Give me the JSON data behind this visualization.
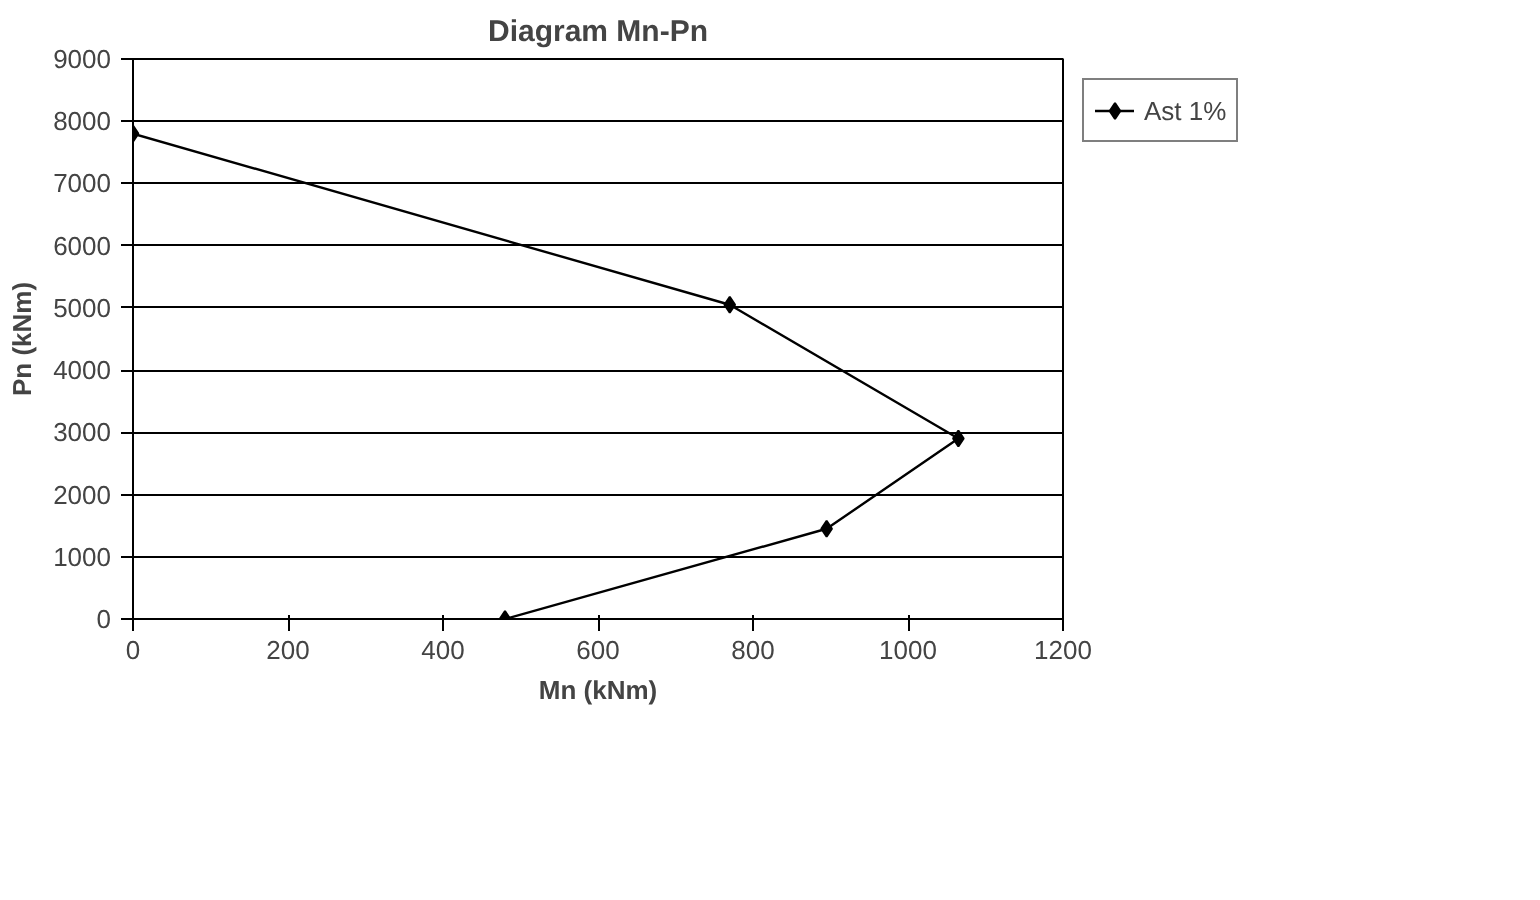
{
  "chart_data": {
    "type": "line",
    "title": "Diagram Mn-Pn",
    "xlabel": "Mn (kNm)",
    "ylabel": "Pn (kNm)",
    "x": [
      0,
      770,
      1065,
      895,
      480
    ],
    "series": [
      {
        "name": "Ast 1%",
        "color": "#000000",
        "values": [
          7800,
          5050,
          2900,
          1450,
          0
        ]
      }
    ],
    "xlim": [
      0,
      1200
    ],
    "xticks": [
      0,
      200,
      400,
      600,
      800,
      1000,
      1200
    ],
    "ylim": [
      0,
      9000
    ],
    "yticks": [
      0,
      1000,
      2000,
      3000,
      4000,
      5000,
      6000,
      7000,
      8000,
      9000
    ],
    "grid": "y",
    "legend": "right",
    "marker": "diamond",
    "line_style": "solid"
  }
}
